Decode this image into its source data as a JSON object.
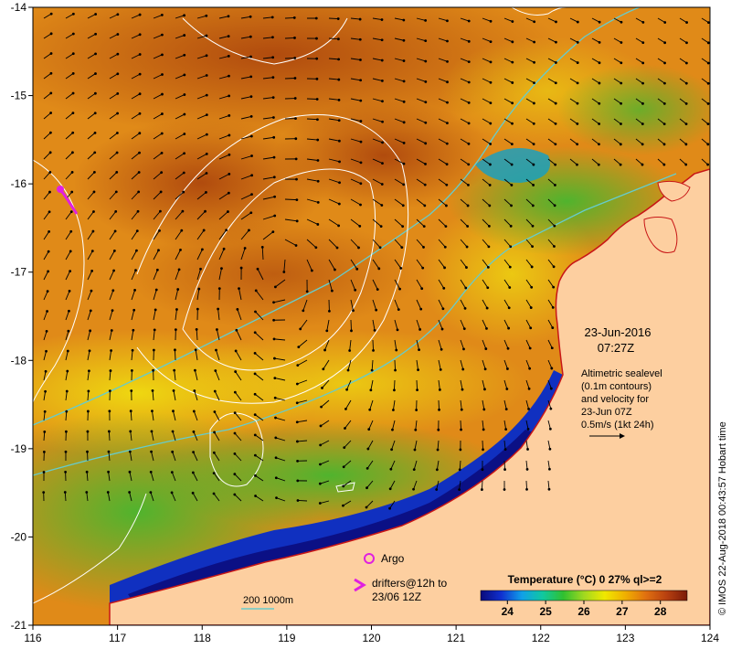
{
  "map": {
    "lon_ticks": [
      "116",
      "117",
      "118",
      "119",
      "120",
      "121",
      "122",
      "123",
      "124"
    ],
    "lat_ticks": [
      "-14",
      "-15",
      "-16",
      "-17",
      "-18",
      "-19",
      "-20",
      "-21"
    ],
    "lon_range": [
      116,
      124
    ],
    "lat_range": [
      -21,
      -14
    ],
    "land_color": "#fdcfa0",
    "coast_color": "#c81616",
    "contour_color": "#ffffff",
    "isobath_color": "#66cccc"
  },
  "annotations": {
    "date": "23-Jun-2016",
    "time": "07:27Z",
    "altimetry_lines": [
      "Altimetric sealevel",
      "(0.1m contours)",
      "and velocity for",
      "23-Jun 07Z",
      "0.5m/s (1kt 24h)"
    ],
    "argo_label": "Argo",
    "drifters_lines": [
      "drifters@12h to",
      "23/06 12Z"
    ],
    "isobath_label": "200  1000m",
    "credit": "© IMOS 22-Aug-2018 00:43:57 Hobart time"
  },
  "colorbar": {
    "title": "Temperature (°C) 0 27% ql>=2",
    "ticks": [
      "24",
      "25",
      "26",
      "27",
      "28"
    ],
    "range": [
      23.3,
      28.7
    ],
    "colors": [
      "#0a0a7a",
      "#1030d0",
      "#10a0e8",
      "#10c8a0",
      "#30c030",
      "#a0d820",
      "#f0e800",
      "#f0b000",
      "#e07010",
      "#b84010",
      "#7a1a08"
    ]
  }
}
